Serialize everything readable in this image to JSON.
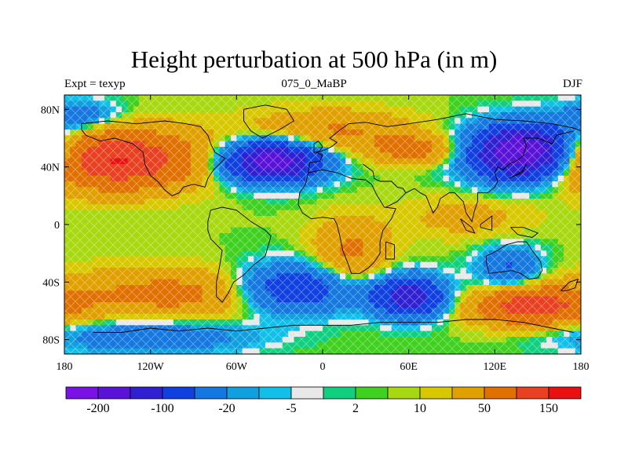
{
  "chart_data": {
    "type": "heatmap",
    "title": "Height perturbation at 500 hPa (in m)",
    "subtitle_left": "Expt = texyp",
    "subtitle_center": "075_0_MaBP",
    "subtitle_right": "DJF",
    "xlim": [
      -180,
      180
    ],
    "ylim": [
      -90,
      90
    ],
    "x_ticks": [
      {
        "value": -180,
        "label": "180"
      },
      {
        "value": -120,
        "label": "120W"
      },
      {
        "value": -60,
        "label": "60W"
      },
      {
        "value": 0,
        "label": "0"
      },
      {
        "value": 60,
        "label": "60E"
      },
      {
        "value": 120,
        "label": "120E"
      },
      {
        "value": 180,
        "label": "180"
      }
    ],
    "y_ticks": [
      {
        "value": 80,
        "label": "80N"
      },
      {
        "value": 40,
        "label": "40N"
      },
      {
        "value": 0,
        "label": "0"
      },
      {
        "value": -40,
        "label": "40S"
      },
      {
        "value": -80,
        "label": "80S"
      }
    ],
    "background_value": 5,
    "features": [
      {
        "lon": -145,
        "lat": 45,
        "amp": 150,
        "sx": 40,
        "sy": 14
      },
      {
        "lon": -35,
        "lat": 44,
        "amp": -190,
        "sx": 24,
        "sy": 10
      },
      {
        "lon": 140,
        "lat": 50,
        "amp": -230,
        "sx": 26,
        "sy": 13
      },
      {
        "lon": 65,
        "lat": 52,
        "amp": 60,
        "sx": 22,
        "sy": 7
      },
      {
        "lon": 5,
        "lat": 65,
        "amp": 50,
        "sx": 40,
        "sy": 10
      },
      {
        "lon": 60,
        "lat": -50,
        "amp": -140,
        "sx": 18,
        "sy": 10
      },
      {
        "lon": 145,
        "lat": -57,
        "amp": 120,
        "sx": 28,
        "sy": 9
      },
      {
        "lon": -100,
        "lat": -48,
        "amp": 60,
        "sx": 60,
        "sy": 12
      },
      {
        "lon": -20,
        "lat": -45,
        "amp": -110,
        "sx": 30,
        "sy": 12
      },
      {
        "lon": 130,
        "lat": -30,
        "amp": -60,
        "sx": 15,
        "sy": 10
      },
      {
        "lon": 20,
        "lat": -20,
        "amp": 55,
        "sx": 18,
        "sy": 16
      },
      {
        "lon": -120,
        "lat": -78,
        "amp": -50,
        "sx": 50,
        "sy": 8
      },
      {
        "lon": 100,
        "lat": 5,
        "amp": 25,
        "sx": 30,
        "sy": 10
      },
      {
        "lon": -170,
        "lat": 75,
        "amp": -45,
        "sx": 20,
        "sy": 8
      }
    ],
    "colorbar": {
      "colors": [
        "#7a12e6",
        "#5a12d8",
        "#3020d2",
        "#1040e0",
        "#1478e0",
        "#10a0e0",
        "#10c0e8",
        "#e8e8e8",
        "#10d080",
        "#40d020",
        "#a8d810",
        "#d8c800",
        "#e0a000",
        "#e07000",
        "#e84020",
        "#e81010"
      ],
      "thresholds": [
        -200,
        -150,
        -100,
        -50,
        -20,
        -10,
        -5,
        -2,
        2,
        5,
        10,
        20,
        50,
        100,
        150
      ],
      "labels": [
        {
          "text": "-200",
          "boundary": 1
        },
        {
          "text": "-100",
          "boundary": 3
        },
        {
          "text": "-20",
          "boundary": 5
        },
        {
          "text": "-5",
          "boundary": 7
        },
        {
          "text": "2",
          "boundary": 9
        },
        {
          "text": "10",
          "boundary": 11
        },
        {
          "text": "50",
          "boundary": 13
        },
        {
          "text": "150",
          "boundary": 15
        }
      ]
    },
    "coastlines": [
      [
        [
          -160,
          -75
        ],
        [
          -140,
          -75
        ],
        [
          -120,
          -72
        ],
        [
          -100,
          -74
        ],
        [
          -80,
          -72
        ],
        [
          -60,
          -74
        ],
        [
          -40,
          -72
        ],
        [
          -20,
          -70
        ],
        [
          0,
          -70
        ],
        [
          20,
          -70
        ],
        [
          40,
          -68
        ],
        [
          60,
          -68
        ],
        [
          80,
          -68
        ],
        [
          100,
          -66
        ],
        [
          120,
          -66
        ],
        [
          140,
          -68
        ],
        [
          160,
          -72
        ],
        [
          175,
          -75
        ]
      ],
      [
        [
          -168,
          70
        ],
        [
          -150,
          72
        ],
        [
          -130,
          70
        ],
        [
          -110,
          72
        ],
        [
          -95,
          70
        ],
        [
          -85,
          68
        ],
        [
          -80,
          62
        ],
        [
          -78,
          56
        ],
        [
          -75,
          50
        ],
        [
          -68,
          46
        ],
        [
          -76,
          38
        ],
        [
          -80,
          32
        ],
        [
          -82,
          26
        ],
        [
          -90,
          28
        ],
        [
          -97,
          26
        ],
        [
          -100,
          22
        ],
        [
          -105,
          20
        ],
        [
          -110,
          24
        ],
        [
          -115,
          30
        ],
        [
          -120,
          34
        ],
        [
          -124,
          42
        ],
        [
          -125,
          50
        ],
        [
          -132,
          56
        ],
        [
          -145,
          60
        ],
        [
          -155,
          58
        ],
        [
          -165,
          62
        ],
        [
          -168,
          66
        ],
        [
          -168,
          70
        ]
      ],
      [
        [
          -55,
          80
        ],
        [
          -40,
          83
        ],
        [
          -25,
          80
        ],
        [
          -20,
          72
        ],
        [
          -30,
          66
        ],
        [
          -42,
          60
        ],
        [
          -50,
          65
        ],
        [
          -55,
          72
        ],
        [
          -55,
          80
        ]
      ],
      [
        [
          -78,
          10
        ],
        [
          -70,
          12
        ],
        [
          -60,
          10
        ],
        [
          -50,
          2
        ],
        [
          -40,
          -4
        ],
        [
          -36,
          -8
        ],
        [
          -40,
          -22
        ],
        [
          -48,
          -28
        ],
        [
          -55,
          -35
        ],
        [
          -62,
          -40
        ],
        [
          -66,
          -48
        ],
        [
          -70,
          -54
        ],
        [
          -74,
          -50
        ],
        [
          -74,
          -40
        ],
        [
          -72,
          -30
        ],
        [
          -70,
          -18
        ],
        [
          -78,
          -10
        ],
        [
          -80,
          -4
        ],
        [
          -80,
          2
        ],
        [
          -78,
          10
        ]
      ],
      [
        [
          -10,
          36
        ],
        [
          0,
          38
        ],
        [
          10,
          36
        ],
        [
          20,
          32
        ],
        [
          30,
          31
        ],
        [
          34,
          28
        ],
        [
          38,
          20
        ],
        [
          43,
          12
        ],
        [
          51,
          11
        ],
        [
          48,
          4
        ],
        [
          42,
          -4
        ],
        [
          40,
          -12
        ],
        [
          40,
          -20
        ],
        [
          36,
          -26
        ],
        [
          32,
          -30
        ],
        [
          26,
          -34
        ],
        [
          20,
          -34
        ],
        [
          18,
          -28
        ],
        [
          14,
          -18
        ],
        [
          12,
          -8
        ],
        [
          10,
          0
        ],
        [
          8,
          4
        ],
        [
          0,
          5
        ],
        [
          -8,
          4
        ],
        [
          -14,
          8
        ],
        [
          -17,
          14
        ],
        [
          -16,
          22
        ],
        [
          -12,
          28
        ],
        [
          -10,
          36
        ]
      ],
      [
        [
          -10,
          36
        ],
        [
          -9,
          43
        ],
        [
          -2,
          44
        ],
        [
          0,
          48
        ],
        [
          -4,
          50
        ],
        [
          2,
          52
        ],
        [
          6,
          54
        ],
        [
          10,
          57
        ],
        [
          5,
          60
        ],
        [
          10,
          64
        ],
        [
          18,
          70
        ],
        [
          30,
          71
        ],
        [
          45,
          68
        ],
        [
          60,
          70
        ],
        [
          80,
          73
        ],
        [
          100,
          77
        ],
        [
          120,
          73
        ],
        [
          140,
          72
        ],
        [
          160,
          70
        ],
        [
          175,
          67
        ],
        [
          180,
          65
        ]
      ],
      [
        [
          28,
          42
        ],
        [
          35,
          37
        ],
        [
          36,
          32
        ],
        [
          40,
          30
        ],
        [
          48,
          30
        ],
        [
          52,
          26
        ],
        [
          56,
          25
        ],
        [
          58,
          22
        ],
        [
          52,
          16
        ],
        [
          44,
          12
        ]
      ],
      [
        [
          58,
          22
        ],
        [
          64,
          25
        ],
        [
          68,
          22
        ],
        [
          72,
          20
        ],
        [
          77,
          8
        ],
        [
          80,
          12
        ],
        [
          82,
          18
        ],
        [
          88,
          22
        ],
        [
          92,
          22
        ],
        [
          98,
          16
        ],
        [
          100,
          8
        ],
        [
          104,
          2
        ],
        [
          106,
          10
        ],
        [
          108,
          16
        ],
        [
          108,
          22
        ],
        [
          115,
          22
        ],
        [
          120,
          26
        ],
        [
          122,
          30
        ],
        [
          120,
          36
        ],
        [
          122,
          40
        ],
        [
          126,
          38
        ],
        [
          130,
          42
        ],
        [
          135,
          44
        ],
        [
          140,
          48
        ],
        [
          142,
          55
        ],
        [
          140,
          60
        ],
        [
          150,
          60
        ],
        [
          160,
          56
        ],
        [
          163,
          62
        ],
        [
          175,
          65
        ]
      ],
      [
        [
          114,
          -22
        ],
        [
          122,
          -18
        ],
        [
          128,
          -14
        ],
        [
          136,
          -12
        ],
        [
          142,
          -12
        ],
        [
          146,
          -18
        ],
        [
          152,
          -26
        ],
        [
          153,
          -32
        ],
        [
          150,
          -37
        ],
        [
          144,
          -38
        ],
        [
          138,
          -34
        ],
        [
          132,
          -32
        ],
        [
          124,
          -33
        ],
        [
          116,
          -34
        ],
        [
          114,
          -26
        ],
        [
          114,
          -22
        ]
      ],
      [
        [
          166,
          -46
        ],
        [
          172,
          -40
        ],
        [
          178,
          -38
        ],
        [
          176,
          -44
        ],
        [
          170,
          -46
        ],
        [
          166,
          -46
        ]
      ],
      [
        [
          96,
          4
        ],
        [
          104,
          -2
        ],
        [
          106,
          -6
        ],
        [
          100,
          -4
        ],
        [
          96,
          4
        ]
      ],
      [
        [
          110,
          0
        ],
        [
          118,
          6
        ],
        [
          118,
          -4
        ],
        [
          110,
          -2
        ],
        [
          110,
          0
        ]
      ],
      [
        [
          131,
          -2
        ],
        [
          140,
          -2
        ],
        [
          150,
          -6
        ],
        [
          146,
          -9
        ],
        [
          136,
          -7
        ],
        [
          131,
          -2
        ]
      ],
      [
        [
          130,
          32
        ],
        [
          136,
          35
        ],
        [
          140,
          38
        ],
        [
          142,
          42
        ],
        [
          139,
          36
        ],
        [
          132,
          33
        ],
        [
          130,
          32
        ]
      ],
      [
        [
          -6,
          50
        ],
        [
          -2,
          51
        ],
        [
          0,
          54
        ],
        [
          -3,
          58
        ],
        [
          -6,
          56
        ],
        [
          -6,
          50
        ]
      ],
      [
        [
          44,
          -12
        ],
        [
          50,
          -14
        ],
        [
          50,
          -24
        ],
        [
          44,
          -24
        ],
        [
          44,
          -12
        ]
      ]
    ]
  }
}
